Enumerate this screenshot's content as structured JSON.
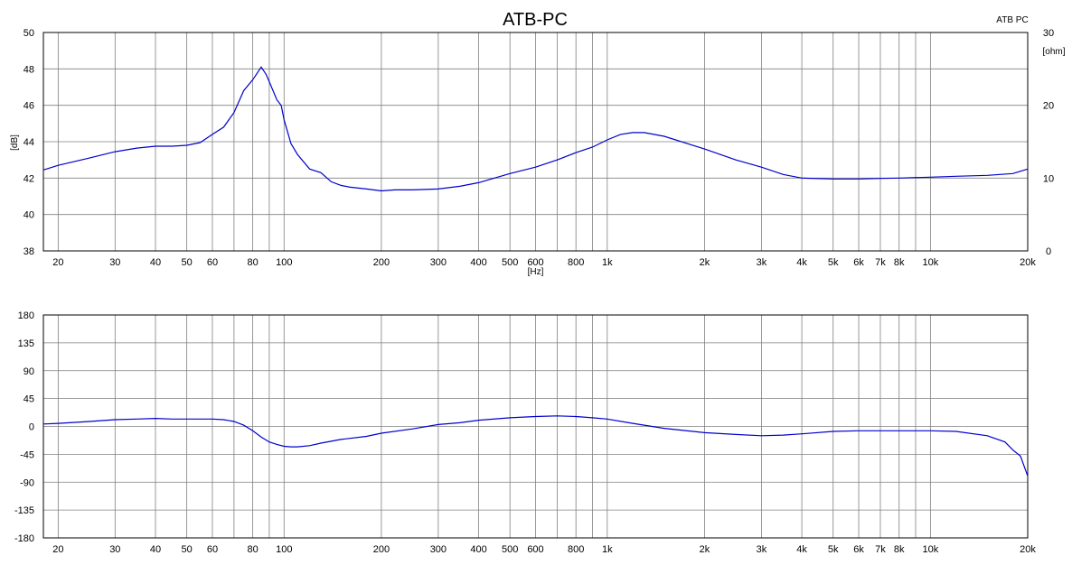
{
  "chart_data": [
    {
      "type": "line",
      "title": "ATB-PC",
      "legend_label": "ATB PC",
      "ylabel": "[dB]",
      "xlabel": "[Hz]",
      "y2label": "[ohm]",
      "x_scale": "log",
      "xlim": [
        18,
        20000
      ],
      "ylim": [
        38,
        50
      ],
      "y2lim": [
        0,
        30
      ],
      "grid": true,
      "line_color": "#0000cc",
      "y_ticks": [
        "50",
        "48",
        "46",
        "44",
        "42",
        "40",
        "38"
      ],
      "y2_ticks": [
        "30",
        "20",
        "10",
        "0"
      ],
      "x_ticks": [
        {
          "f": 20,
          "label": "20"
        },
        {
          "f": 30,
          "label": "30"
        },
        {
          "f": 40,
          "label": "40"
        },
        {
          "f": 50,
          "label": "50"
        },
        {
          "f": 60,
          "label": "60"
        },
        {
          "f": 80,
          "label": "80"
        },
        {
          "f": 100,
          "label": "100"
        },
        {
          "f": 200,
          "label": "200"
        },
        {
          "f": 300,
          "label": "300"
        },
        {
          "f": 400,
          "label": "400"
        },
        {
          "f": 500,
          "label": "500"
        },
        {
          "f": 600,
          "label": "600"
        },
        {
          "f": 800,
          "label": "800"
        },
        {
          "f": 1000,
          "label": "1k"
        },
        {
          "f": 2000,
          "label": "2k"
        },
        {
          "f": 3000,
          "label": "3k"
        },
        {
          "f": 4000,
          "label": "4k"
        },
        {
          "f": 5000,
          "label": "5k"
        },
        {
          "f": 6000,
          "label": "6k"
        },
        {
          "f": 7000,
          "label": "7k"
        },
        {
          "f": 8000,
          "label": "8k"
        },
        {
          "f": 10000,
          "label": "10k"
        },
        {
          "f": 20000,
          "label": "20k"
        }
      ],
      "series": [
        {
          "x": [
            18,
            20,
            25,
            30,
            35,
            40,
            45,
            50,
            55,
            60,
            65,
            70,
            75,
            80,
            85,
            88,
            90,
            95,
            98,
            100,
            105,
            110,
            120,
            130,
            140,
            150,
            160,
            180,
            200,
            220,
            250,
            300,
            350,
            400,
            500,
            600,
            700,
            800,
            900,
            1000,
            1100,
            1200,
            1300,
            1500,
            2000,
            2500,
            3000,
            3500,
            4000,
            5000,
            6000,
            7000,
            8000,
            10000,
            12000,
            15000,
            18000,
            20000
          ],
          "y": [
            42.45,
            42.7,
            43.1,
            43.45,
            43.65,
            43.75,
            43.75,
            43.8,
            43.95,
            44.4,
            44.8,
            45.6,
            46.8,
            47.4,
            48.1,
            47.7,
            47.3,
            46.3,
            46.0,
            45.2,
            43.9,
            43.3,
            42.5,
            42.3,
            41.8,
            41.6,
            41.5,
            41.4,
            41.3,
            41.35,
            41.35,
            41.4,
            41.55,
            41.75,
            42.25,
            42.6,
            43.0,
            43.4,
            43.7,
            44.1,
            44.4,
            44.5,
            44.5,
            44.3,
            43.6,
            43.0,
            42.6,
            42.2,
            42.0,
            41.95,
            41.95,
            41.98,
            42.0,
            42.05,
            42.1,
            42.15,
            42.25,
            42.5
          ]
        }
      ]
    },
    {
      "type": "line",
      "x_scale": "log",
      "xlim": [
        18,
        20000
      ],
      "ylim": [
        -180,
        180
      ],
      "grid": true,
      "line_color": "#0000cc",
      "y_ticks": [
        "180",
        "135",
        "90",
        "45",
        "0",
        "-45",
        "-90",
        "-135",
        "-180"
      ],
      "x_ticks": [
        {
          "f": 20,
          "label": "20"
        },
        {
          "f": 30,
          "label": "30"
        },
        {
          "f": 40,
          "label": "40"
        },
        {
          "f": 50,
          "label": "50"
        },
        {
          "f": 60,
          "label": "60"
        },
        {
          "f": 80,
          "label": "80"
        },
        {
          "f": 100,
          "label": "100"
        },
        {
          "f": 200,
          "label": "200"
        },
        {
          "f": 300,
          "label": "300"
        },
        {
          "f": 400,
          "label": "400"
        },
        {
          "f": 500,
          "label": "500"
        },
        {
          "f": 600,
          "label": "600"
        },
        {
          "f": 800,
          "label": "800"
        },
        {
          "f": 1000,
          "label": "1k"
        },
        {
          "f": 2000,
          "label": "2k"
        },
        {
          "f": 3000,
          "label": "3k"
        },
        {
          "f": 4000,
          "label": "4k"
        },
        {
          "f": 5000,
          "label": "5k"
        },
        {
          "f": 6000,
          "label": "6k"
        },
        {
          "f": 7000,
          "label": "7k"
        },
        {
          "f": 8000,
          "label": "8k"
        },
        {
          "f": 10000,
          "label": "10k"
        },
        {
          "f": 20000,
          "label": "20k"
        }
      ],
      "series": [
        {
          "x": [
            18,
            20,
            25,
            30,
            35,
            40,
            45,
            50,
            55,
            60,
            65,
            70,
            75,
            80,
            85,
            90,
            95,
            100,
            105,
            110,
            120,
            130,
            150,
            180,
            200,
            250,
            300,
            350,
            400,
            500,
            600,
            700,
            800,
            900,
            1000,
            1200,
            1500,
            2000,
            2500,
            3000,
            3500,
            4000,
            5000,
            6000,
            7000,
            8000,
            10000,
            12000,
            15000,
            17000,
            18000,
            19000,
            20000
          ],
          "y": [
            4,
            5,
            8,
            11,
            12,
            13,
            12,
            12,
            12,
            12,
            11,
            8,
            2,
            -7,
            -17,
            -25,
            -29,
            -32,
            -33,
            -33,
            -31,
            -27,
            -21,
            -16,
            -11,
            -4,
            3,
            6,
            10,
            14,
            16,
            17,
            16,
            14,
            12,
            5,
            -3,
            -10,
            -13,
            -15,
            -14,
            -12,
            -8,
            -7,
            -7,
            -7,
            -7,
            -8,
            -15,
            -25,
            -38,
            -48,
            -80
          ]
        }
      ]
    }
  ]
}
